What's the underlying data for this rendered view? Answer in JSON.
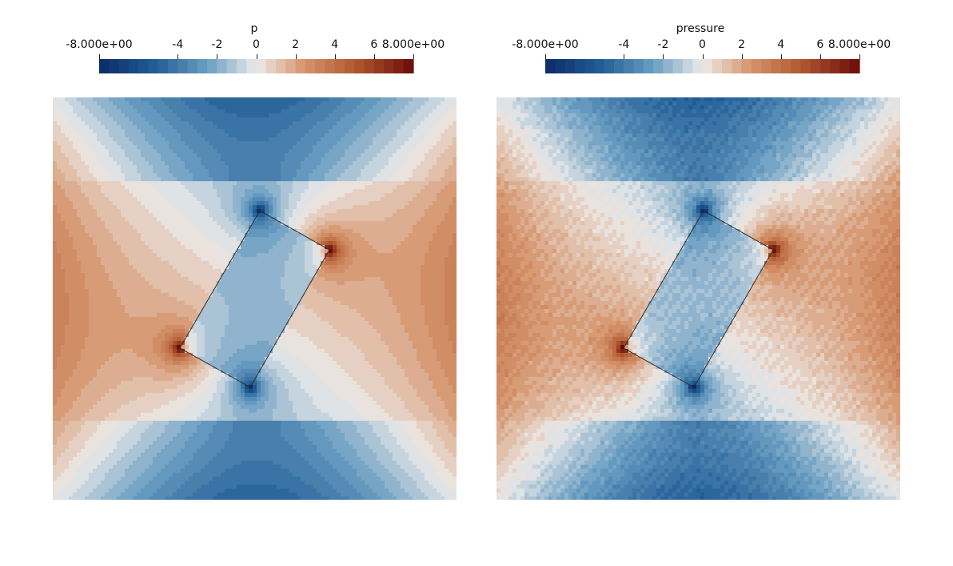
{
  "panels": [
    {
      "id": "left",
      "colorbar": {
        "title": "p",
        "ticks": [
          "-8.000e+00",
          "-4",
          "-2",
          "0",
          "2",
          "4",
          "6",
          "8.000e+00"
        ],
        "tick_values": [
          -8,
          -4,
          -2,
          0,
          2,
          4,
          6,
          8
        ],
        "range": [
          -8,
          8
        ]
      }
    },
    {
      "id": "right",
      "colorbar": {
        "title": "pressure",
        "ticks": [
          "-8.000e+00",
          "-4",
          "-2",
          "0",
          "2",
          "4",
          "6",
          "8.000e+00"
        ],
        "tick_values": [
          -8,
          -4,
          -2,
          0,
          2,
          4,
          6,
          8
        ],
        "range": [
          -8,
          8
        ]
      }
    }
  ],
  "colormap": {
    "name": "cool-to-warm (blue-white-red)",
    "low": "#0b2a66",
    "mid": "#ecebea",
    "high": "#6b0c0a",
    "bands": 32
  },
  "background": "#ffffff"
}
